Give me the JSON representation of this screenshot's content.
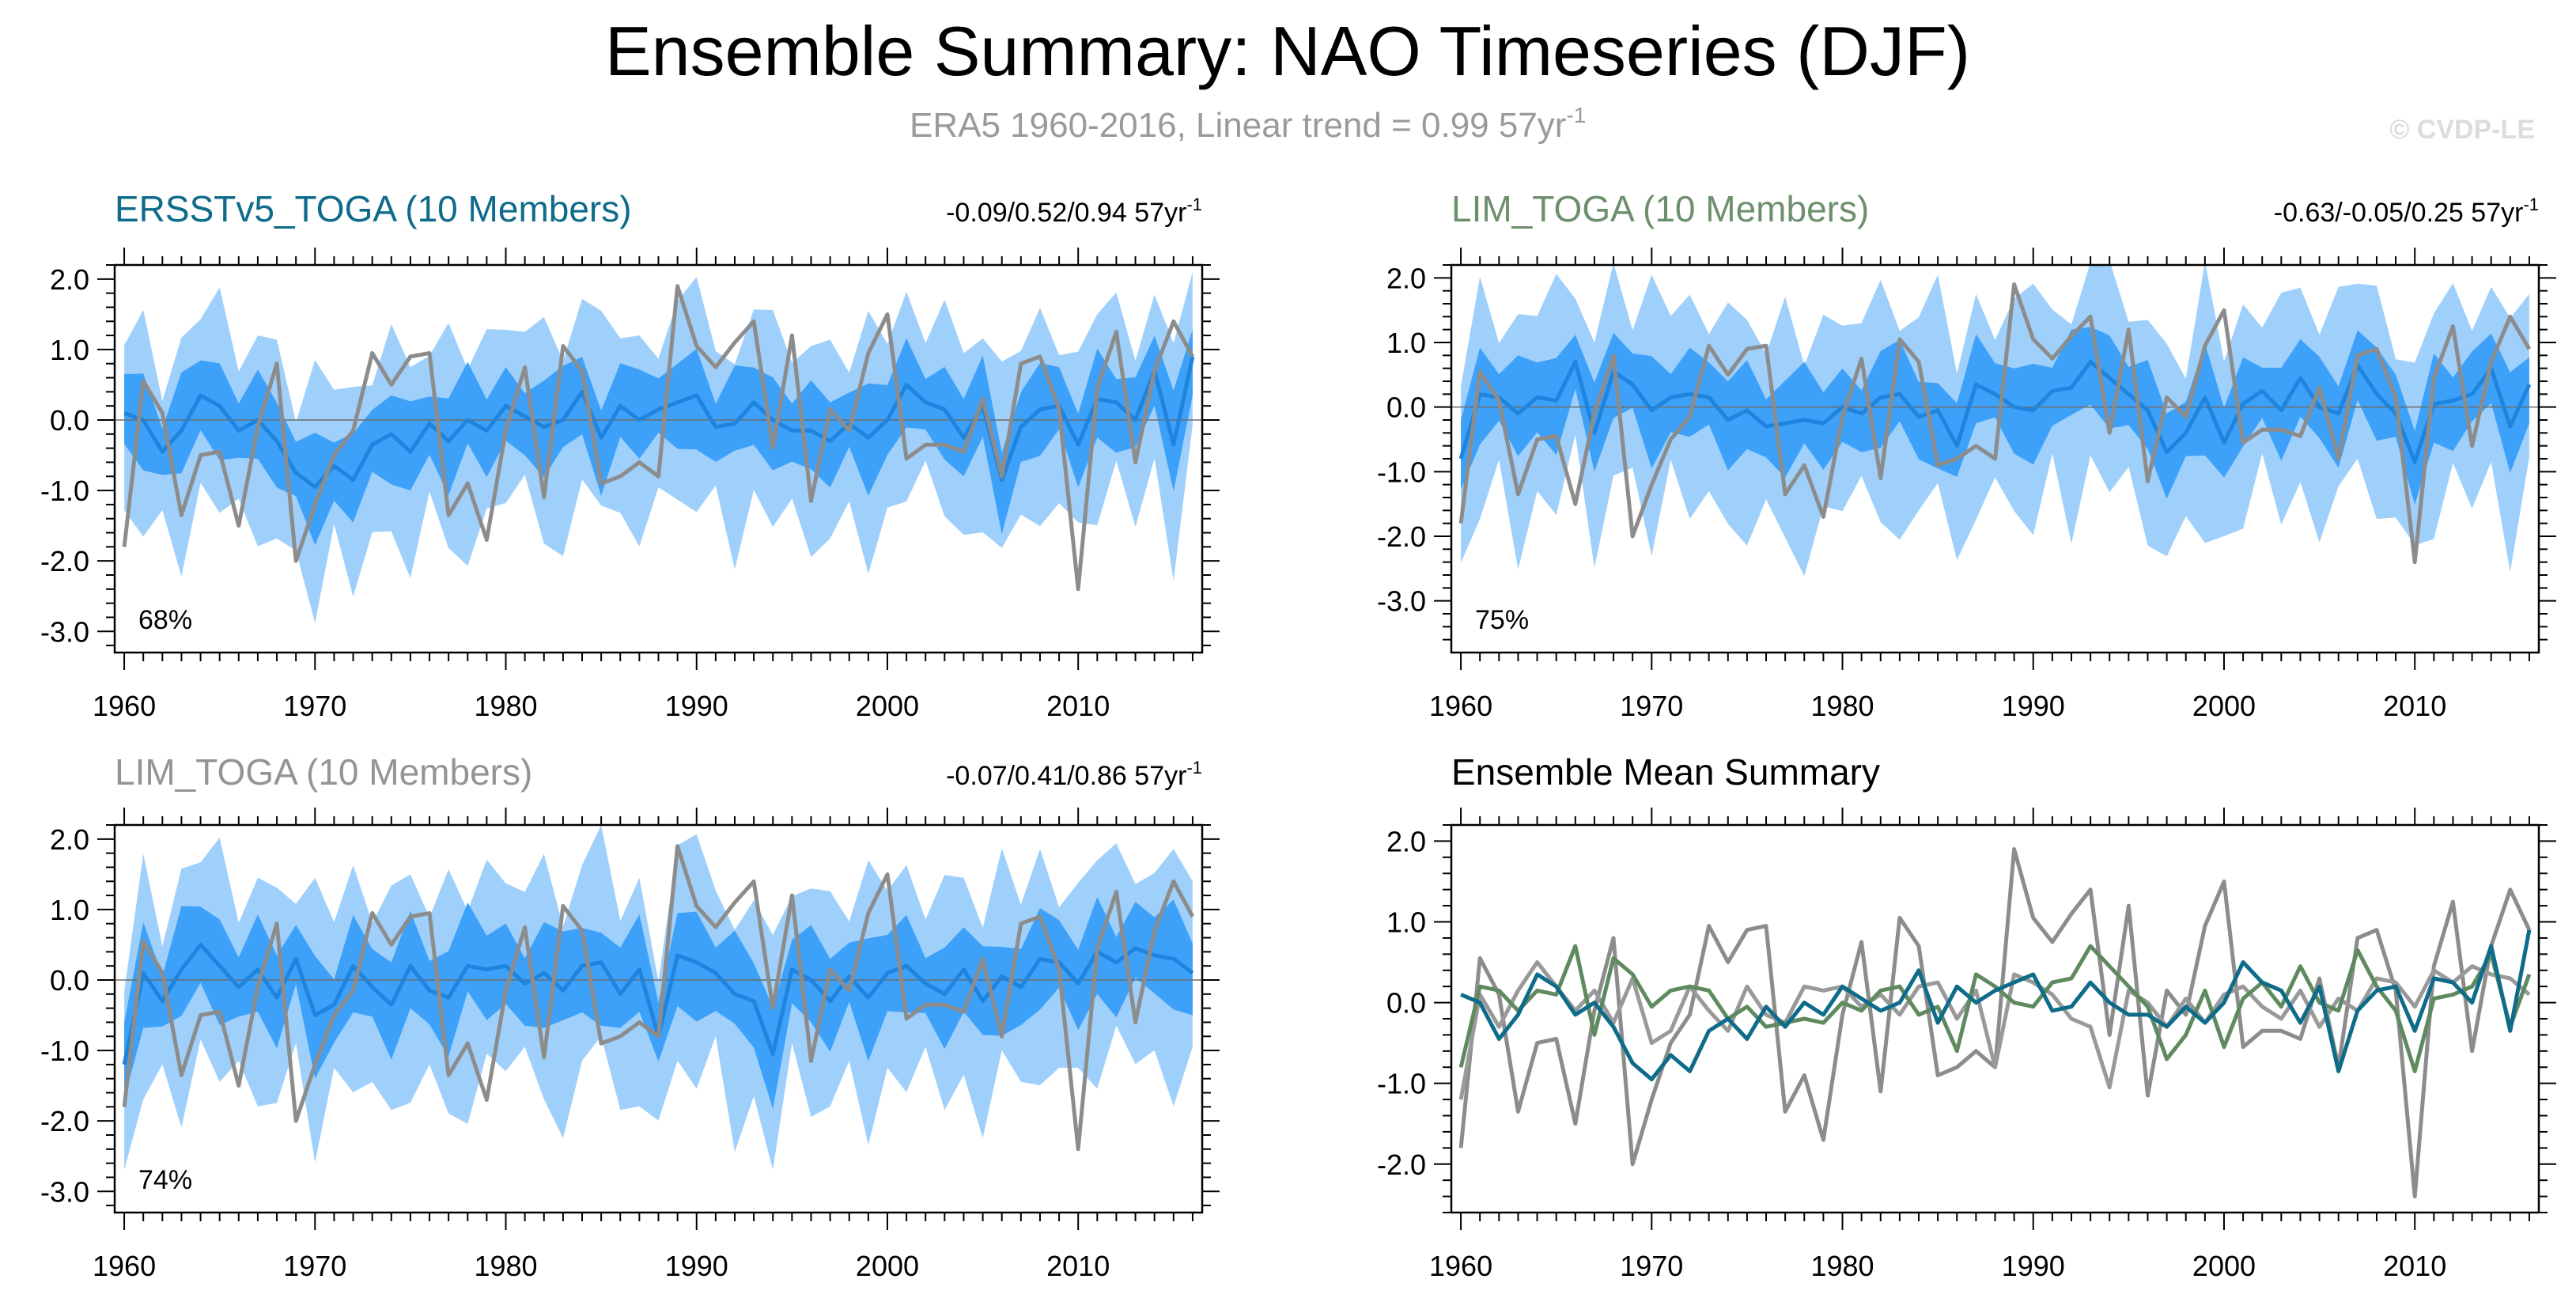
{
  "title": "Ensemble Summary: NAO Timeseries (DJF)",
  "subtitle": {
    "text": "ERA5 1960-2016, Linear trend = 0.99 57yr",
    "sup": "-1"
  },
  "credit": "© CVDP-LE",
  "colors": {
    "outer_band": "#9fd0fb",
    "inner_band": "#3ea1f9",
    "ens_mean": "#1f84dd",
    "observed": "#8c8c8c",
    "ersst_title": "#0e6b8a",
    "lim_title": "#6e8f6e",
    "lim2_title": "#949494",
    "mean_ersst": "#0e6b8a",
    "mean_lim": "#5f8a5f",
    "mean_lim2": "#999999"
  },
  "chart_data": [
    {
      "type": "line",
      "id": "panel-1",
      "title": "ERSSTv5_TOGA (10 Members)",
      "title_color_key": "ersst_title",
      "trend": "-0.09/0.52/0.94 57yr",
      "trend_sup": "-1",
      "percent": "68%",
      "ylim": [
        -3.3,
        2.2
      ],
      "yticks": [
        2.0,
        1.0,
        0.0,
        -1.0,
        -2.0,
        -3.0
      ],
      "ytick_labels": [
        "2.0",
        "1.0",
        "0.0",
        "-1.0",
        "-2.0",
        "-3.0"
      ],
      "xlim": [
        1959.5,
        2016.5
      ],
      "xticks": [
        1960,
        1970,
        1980,
        1990,
        2000,
        2010
      ],
      "ens_member_count": 10,
      "ens_mean_offset": 0.0,
      "ens_mean_scale": 1.0,
      "inner_halfwidth": 0.55,
      "outer_halfwidth": 1.2
    },
    {
      "type": "line",
      "id": "panel-2",
      "title": "LIM_TOGA (10 Members)",
      "title_color_key": "lim_title",
      "trend": "-0.63/-0.05/0.25 57yr",
      "trend_sup": "-1",
      "percent": "75%",
      "ylim": [
        -3.8,
        2.2
      ],
      "yticks": [
        2.0,
        1.0,
        0.0,
        -1.0,
        -2.0,
        -3.0
      ],
      "ytick_labels": [
        "2.0",
        "1.0",
        "0.0",
        "-1.0",
        "-2.0",
        "-3.0"
      ],
      "xlim": [
        1959.5,
        2016.5
      ],
      "xticks": [
        1960,
        1970,
        1980,
        1990,
        2000,
        2010
      ],
      "ens_member_count": 10,
      "ens_mean_offset": 0.0,
      "ens_mean_scale": 1.0,
      "inner_halfwidth": 0.6,
      "outer_halfwidth": 1.4
    },
    {
      "type": "line",
      "id": "panel-3",
      "title": "LIM_TOGA (10 Members)",
      "title_color_key": "lim2_title",
      "trend": "-0.07/0.41/0.86 57yr",
      "trend_sup": "-1",
      "percent": "74%",
      "ylim": [
        -3.3,
        2.2
      ],
      "yticks": [
        2.0,
        1.0,
        0.0,
        -1.0,
        -2.0,
        -3.0
      ],
      "ytick_labels": [
        "2.0",
        "1.0",
        "0.0",
        "-1.0",
        "-2.0",
        "-3.0"
      ],
      "xlim": [
        1959.5,
        2016.5
      ],
      "xticks": [
        1960,
        1970,
        1980,
        1990,
        2000,
        2010
      ],
      "ens_member_count": 10,
      "ens_mean_offset": 0.0,
      "ens_mean_scale": 1.0,
      "inner_halfwidth": 0.6,
      "outer_halfwidth": 1.3
    },
    {
      "type": "line",
      "id": "panel-4",
      "title": "Ensemble Mean Summary",
      "title_color_key": null,
      "ylim": [
        -2.6,
        2.2
      ],
      "yticks": [
        2.0,
        1.0,
        0.0,
        -1.0,
        -2.0
      ],
      "ytick_labels": [
        "2.0",
        "1.0",
        "0.0",
        "-1.0",
        "-2.0"
      ],
      "xlim": [
        1959.5,
        2016.5
      ],
      "xticks": [
        1960,
        1970,
        1980,
        1990,
        2000,
        2010
      ]
    }
  ],
  "series": {
    "years_start": 1960,
    "years_end": 2016,
    "observed_era5": [
      -1.8,
      0.55,
      0.1,
      -1.35,
      -0.5,
      -0.45,
      -1.5,
      -0.1,
      0.8,
      -2.0,
      -1.2,
      -0.5,
      -0.15,
      0.95,
      0.5,
      0.9,
      0.95,
      -1.35,
      -0.9,
      -1.7,
      -0.15,
      0.75,
      -1.1,
      1.05,
      0.7,
      -0.9,
      -0.8,
      -0.6,
      -0.8,
      1.9,
      1.05,
      0.75,
      1.1,
      1.4,
      -0.4,
      1.2,
      -1.15,
      0.15,
      -0.15,
      0.95,
      1.5,
      -0.55,
      -0.35,
      -0.35,
      -0.45,
      0.3,
      -0.8,
      0.8,
      0.9,
      0.15,
      -2.4,
      0.45,
      1.25,
      -0.6,
      0.7,
      1.4,
      0.9
    ],
    "ens_mean_ersst": [
      0.1,
      0.0,
      -0.45,
      -0.15,
      0.35,
      0.2,
      -0.15,
      0.0,
      -0.3,
      -0.75,
      -0.95,
      -0.65,
      -0.85,
      -0.35,
      -0.2,
      -0.45,
      -0.05,
      -0.3,
      0.0,
      -0.15,
      0.2,
      0.05,
      -0.1,
      0.0,
      0.4,
      -0.25,
      0.2,
      0.0,
      0.15,
      0.25,
      0.35,
      -0.1,
      -0.05,
      0.25,
      0.0,
      -0.15,
      -0.15,
      -0.3,
      -0.05,
      -0.25,
      0.0,
      0.5,
      0.25,
      0.15,
      -0.25,
      0.2,
      -0.85,
      -0.1,
      0.15,
      0.2,
      -0.35,
      0.3,
      0.25,
      0.0,
      0.7,
      -0.35,
      0.9
    ],
    "ens_mean_lim": [
      -0.8,
      0.2,
      0.15,
      -0.1,
      0.15,
      0.1,
      0.7,
      -0.4,
      0.55,
      0.35,
      -0.05,
      0.15,
      0.2,
      0.15,
      -0.2,
      -0.05,
      -0.3,
      -0.25,
      -0.2,
      -0.25,
      0.0,
      -0.1,
      0.15,
      0.2,
      -0.15,
      -0.05,
      -0.6,
      0.35,
      0.2,
      0.0,
      -0.05,
      0.25,
      0.3,
      0.7,
      0.45,
      0.2,
      -0.05,
      -0.7,
      -0.4,
      0.15,
      -0.55,
      0.05,
      0.25,
      -0.05,
      0.45,
      0.0,
      -0.1,
      0.65,
      0.2,
      -0.1,
      -0.85,
      0.05,
      0.1,
      0.2,
      0.6,
      -0.3,
      0.35
    ],
    "ens_mean_lim2": [
      -1.2,
      0.1,
      -0.3,
      0.15,
      0.5,
      0.2,
      -0.1,
      0.15,
      -0.25,
      0.3,
      -0.5,
      -0.35,
      0.2,
      -0.1,
      -0.35,
      0.2,
      -0.15,
      -0.25,
      0.2,
      0.15,
      0.2,
      -0.05,
      0.1,
      -0.15,
      0.2,
      0.25,
      -0.2,
      0.15,
      -0.8,
      0.35,
      0.25,
      0.1,
      -0.2,
      -0.3,
      -1.05,
      0.15,
      0.0,
      -0.3,
      0.05,
      -0.25,
      0.1,
      0.2,
      -0.05,
      -0.2,
      0.15,
      -0.3,
      0.05,
      -0.1,
      0.3,
      0.25,
      -0.05,
      0.4,
      0.25,
      0.45,
      0.35,
      0.3,
      0.1
    ]
  },
  "band_noise": [
    0.8,
    1.3,
    0.6,
    1.1,
    0.9,
    1.4,
    0.7,
    1.0,
    1.2,
    0.6,
    1.5,
    0.9,
    1.1,
    0.7,
    1.3,
    1.0,
    0.8,
    1.4,
    0.6,
    1.2,
    0.9,
    1.0,
    1.3,
    0.7,
    1.1,
    1.5,
    0.8,
    1.0,
    0.6,
    1.2,
    1.4,
    0.9,
    0.7,
    1.1,
    1.3,
    0.8,
    1.0,
    1.2,
    0.6,
    1.5,
    0.9,
    1.1,
    0.7,
    1.3,
    1.0,
    0.8,
    1.4,
    0.9,
    1.2,
    0.6,
    1.1,
    1.0,
    1.3,
    0.7,
    0.9,
    1.2,
    1.0
  ],
  "ensemble_mean_summary": {
    "legend_order": [
      "ERSSTv5_TOGA",
      "LIM_TOGA",
      "LIM_TOGA",
      "ERA5"
    ]
  }
}
